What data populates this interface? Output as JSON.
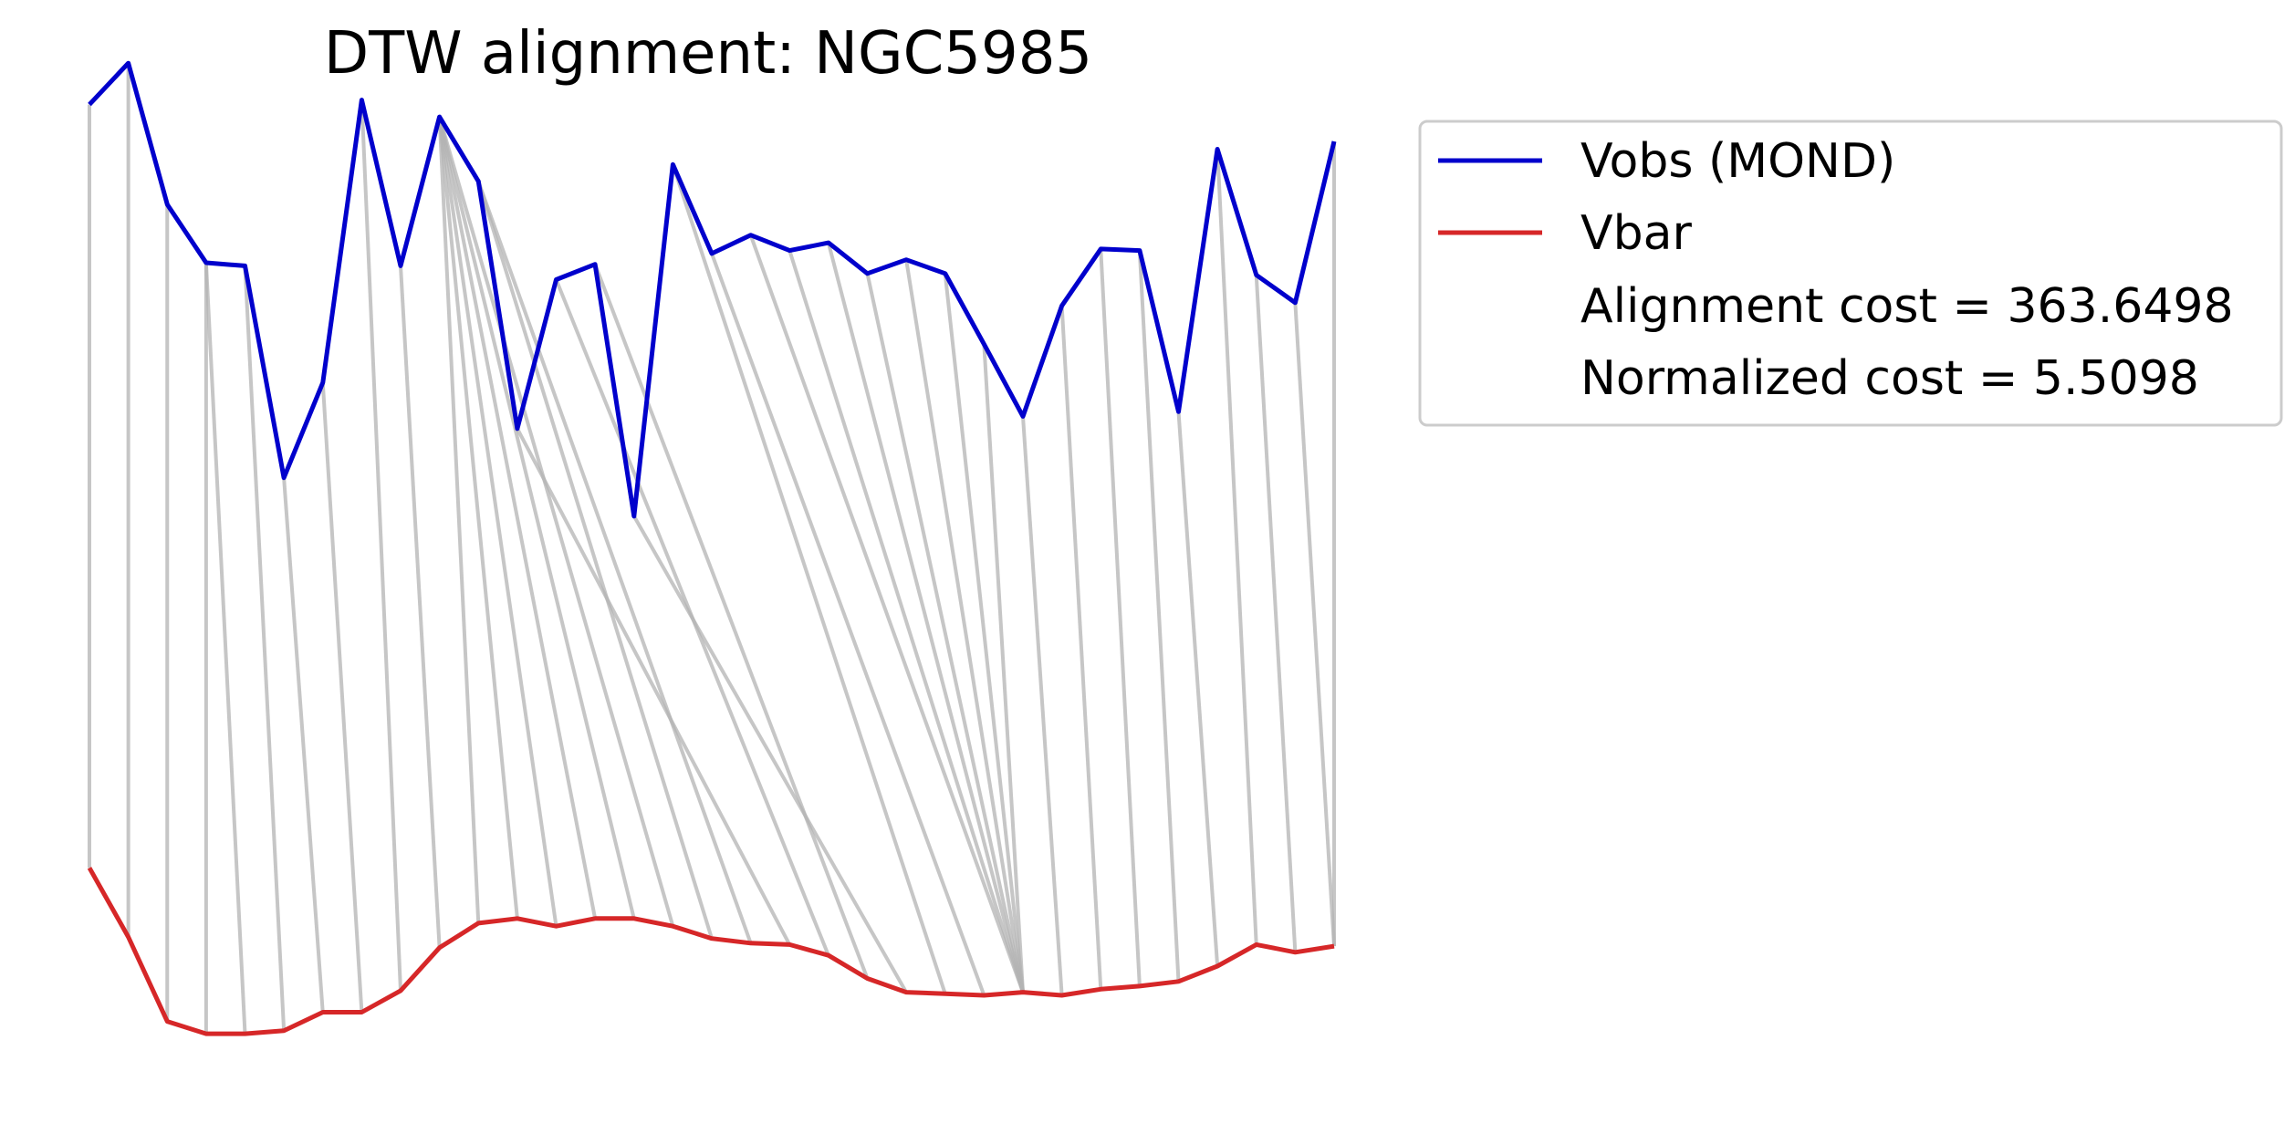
{
  "chart_data": {
    "type": "line",
    "title": "DTW alignment: NGC5985",
    "xlabel": "",
    "ylabel": "",
    "axes_visible": false,
    "grid": false,
    "legend_position": "outside-right-top",
    "colors": {
      "vobs": "#0000cc",
      "vbar": "#d62728",
      "alignment": "#b3b3b3"
    },
    "series": [
      {
        "name": "Vobs (MOND)",
        "values": [
          9.21,
          9.48,
          8.56,
          8.18,
          8.16,
          6.78,
          7.4,
          9.24,
          8.16,
          9.13,
          8.71,
          7.1,
          8.07,
          8.17,
          6.53,
          8.82,
          8.24,
          8.36,
          8.26,
          8.31,
          8.11,
          8.2,
          8.11,
          7.65,
          7.18,
          7.9,
          8.27,
          8.26,
          7.21,
          8.92,
          8.1,
          7.92,
          8.97
        ]
      },
      {
        "name": "Vbar",
        "values": [
          4.24,
          3.79,
          3.24,
          3.16,
          3.16,
          3.18,
          3.3,
          3.3,
          3.44,
          3.72,
          3.88,
          3.91,
          3.86,
          3.91,
          3.91,
          3.86,
          3.78,
          3.75,
          3.74,
          3.67,
          3.52,
          3.43,
          3.42,
          3.41,
          3.43,
          3.41,
          3.45,
          3.47,
          3.5,
          3.6,
          3.74,
          3.69,
          3.73
        ]
      }
    ],
    "alignment_pairs": [
      [
        0,
        0
      ],
      [
        1,
        1
      ],
      [
        2,
        2
      ],
      [
        3,
        3
      ],
      [
        3,
        4
      ],
      [
        4,
        5
      ],
      [
        5,
        6
      ],
      [
        6,
        7
      ],
      [
        7,
        8
      ],
      [
        8,
        9
      ],
      [
        9,
        10
      ],
      [
        9,
        11
      ],
      [
        9,
        12
      ],
      [
        9,
        13
      ],
      [
        9,
        14
      ],
      [
        9,
        15
      ],
      [
        10,
        16
      ],
      [
        10,
        17
      ],
      [
        11,
        18
      ],
      [
        12,
        19
      ],
      [
        13,
        20
      ],
      [
        14,
        21
      ],
      [
        15,
        22
      ],
      [
        16,
        23
      ],
      [
        17,
        24
      ],
      [
        18,
        24
      ],
      [
        19,
        24
      ],
      [
        20,
        24
      ],
      [
        21,
        24
      ],
      [
        22,
        24
      ],
      [
        23,
        24
      ],
      [
        24,
        25
      ],
      [
        25,
        26
      ],
      [
        26,
        27
      ],
      [
        27,
        28
      ],
      [
        28,
        29
      ],
      [
        29,
        30
      ],
      [
        30,
        31
      ],
      [
        31,
        32
      ],
      [
        32,
        32
      ]
    ],
    "legend_entries": [
      {
        "label": "Vobs (MOND)",
        "color": "#0000cc",
        "marker": "line"
      },
      {
        "label": "Vbar",
        "color": "#d62728",
        "marker": "line"
      },
      {
        "label": "Alignment cost = 363.6498",
        "color": "",
        "marker": "none"
      },
      {
        "label": "Normalized cost = 5.5098",
        "color": "",
        "marker": "none"
      }
    ]
  }
}
